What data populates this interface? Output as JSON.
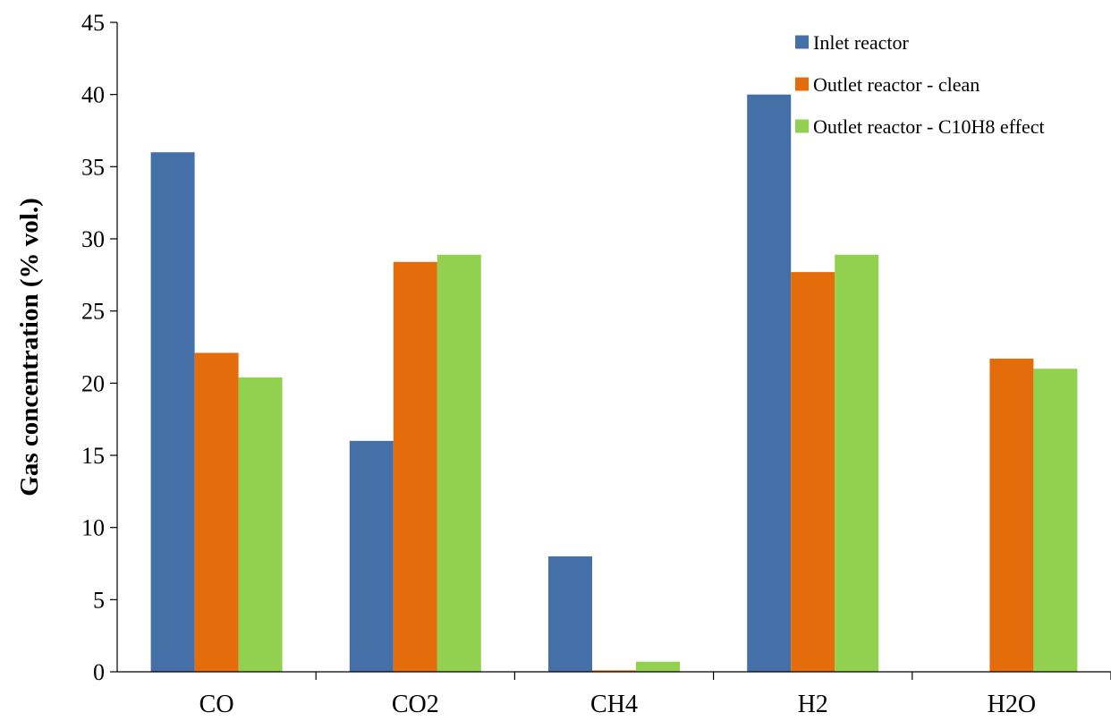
{
  "chart_data": {
    "type": "bar",
    "ylabel": "Gas concentration (% vol.)",
    "xlabel": "",
    "ylim": [
      0,
      45
    ],
    "yticks": [
      0,
      5,
      10,
      15,
      20,
      25,
      30,
      35,
      40,
      45
    ],
    "categories": [
      "CO",
      "CO2",
      "CH4",
      "H2",
      "H2O"
    ],
    "series": [
      {
        "name": "Inlet reactor",
        "color": "#4570a7",
        "values": [
          36,
          16,
          8,
          40,
          0
        ]
      },
      {
        "name": "Outlet reactor - clean",
        "color": "#e46c0a",
        "values": [
          22.1,
          28.4,
          0.1,
          27.7,
          21.7
        ]
      },
      {
        "name": "Outlet reactor - C10H8 effect",
        "color": "#92d050",
        "values": [
          20.4,
          28.9,
          0.7,
          28.9,
          21.0
        ]
      }
    ],
    "legend_position": "top-right",
    "grid": false
  }
}
